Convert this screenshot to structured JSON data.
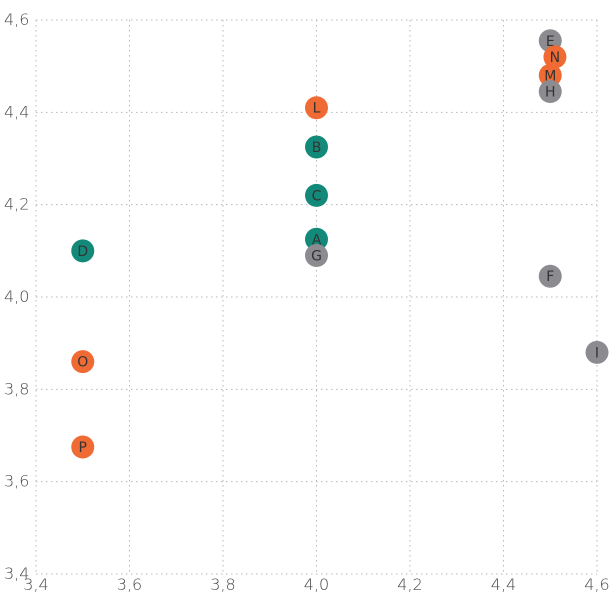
{
  "chart_data": {
    "type": "scatter",
    "xlim": [
      3.4,
      4.6
    ],
    "ylim": [
      3.4,
      4.6
    ],
    "x_ticks": [
      "3,4",
      "3,6",
      "3,8",
      "4,0",
      "4,2",
      "4,4",
      "4,6"
    ],
    "y_ticks": [
      "3,4",
      "3,6",
      "3,8",
      "4,0",
      "4,2",
      "4,4",
      "4,6"
    ],
    "grid": true,
    "colors": {
      "teal": "#138a79",
      "orange": "#f06a34",
      "gray": "#8c8c90"
    },
    "points": [
      {
        "label": "E",
        "x": 4.5,
        "y": 4.555,
        "color": "gray"
      },
      {
        "label": "N",
        "x": 4.51,
        "y": 4.52,
        "color": "orange"
      },
      {
        "label": "M",
        "x": 4.5,
        "y": 4.48,
        "color": "orange"
      },
      {
        "label": "H",
        "x": 4.5,
        "y": 4.445,
        "color": "gray"
      },
      {
        "label": "L",
        "x": 4.0,
        "y": 4.41,
        "color": "orange"
      },
      {
        "label": "B",
        "x": 4.0,
        "y": 4.325,
        "color": "teal"
      },
      {
        "label": "C",
        "x": 4.0,
        "y": 4.22,
        "color": "teal"
      },
      {
        "label": "A",
        "x": 4.0,
        "y": 4.125,
        "color": "teal"
      },
      {
        "label": "G",
        "x": 4.0,
        "y": 4.09,
        "color": "gray"
      },
      {
        "label": "D",
        "x": 3.5,
        "y": 4.1,
        "color": "teal"
      },
      {
        "label": "F",
        "x": 4.5,
        "y": 4.045,
        "color": "gray"
      },
      {
        "label": "I",
        "x": 4.6,
        "y": 3.88,
        "color": "gray"
      },
      {
        "label": "O",
        "x": 3.5,
        "y": 3.86,
        "color": "orange"
      },
      {
        "label": "P",
        "x": 3.5,
        "y": 3.675,
        "color": "orange"
      }
    ]
  }
}
